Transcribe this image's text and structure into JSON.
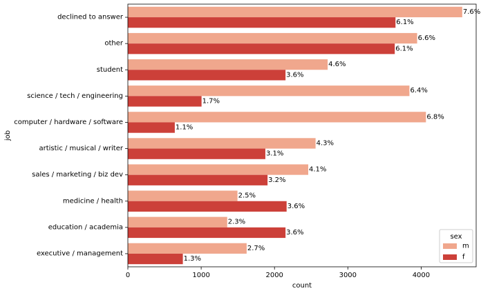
{
  "chart_data": {
    "type": "bar",
    "orientation": "horizontal",
    "xlabel": "count",
    "ylabel": "job",
    "xlim": [
      0,
      4750
    ],
    "x_ticks": [
      0,
      1000,
      2000,
      3000,
      4000
    ],
    "categories": [
      "declined to answer",
      "other",
      "student",
      "science / tech / engineering",
      "computer / hardware / software",
      "artistic / musical / writer",
      "sales / marketing / biz dev",
      "medicine / health",
      "education / academia",
      "executive / management"
    ],
    "series": [
      {
        "name": "m",
        "color": "#f0a78d",
        "values": [
          4560,
          3945,
          2725,
          3840,
          4065,
          2560,
          2460,
          1495,
          1355,
          1620
        ],
        "labels": [
          "7.6%",
          "6.6%",
          "4.6%",
          "6.4%",
          "6.8%",
          "4.3%",
          "4.1%",
          "2.5%",
          "2.3%",
          "2.7%"
        ]
      },
      {
        "name": "f",
        "color": "#cc4039",
        "values": [
          3650,
          3640,
          2150,
          1005,
          640,
          1875,
          1905,
          2165,
          2150,
          750
        ],
        "labels": [
          "6.1%",
          "6.1%",
          "3.6%",
          "1.7%",
          "1.1%",
          "3.1%",
          "3.2%",
          "3.6%",
          "3.6%",
          "1.3%"
        ]
      }
    ],
    "legend": {
      "title": "sex",
      "placement": "lower-right"
    },
    "grid": false
  }
}
